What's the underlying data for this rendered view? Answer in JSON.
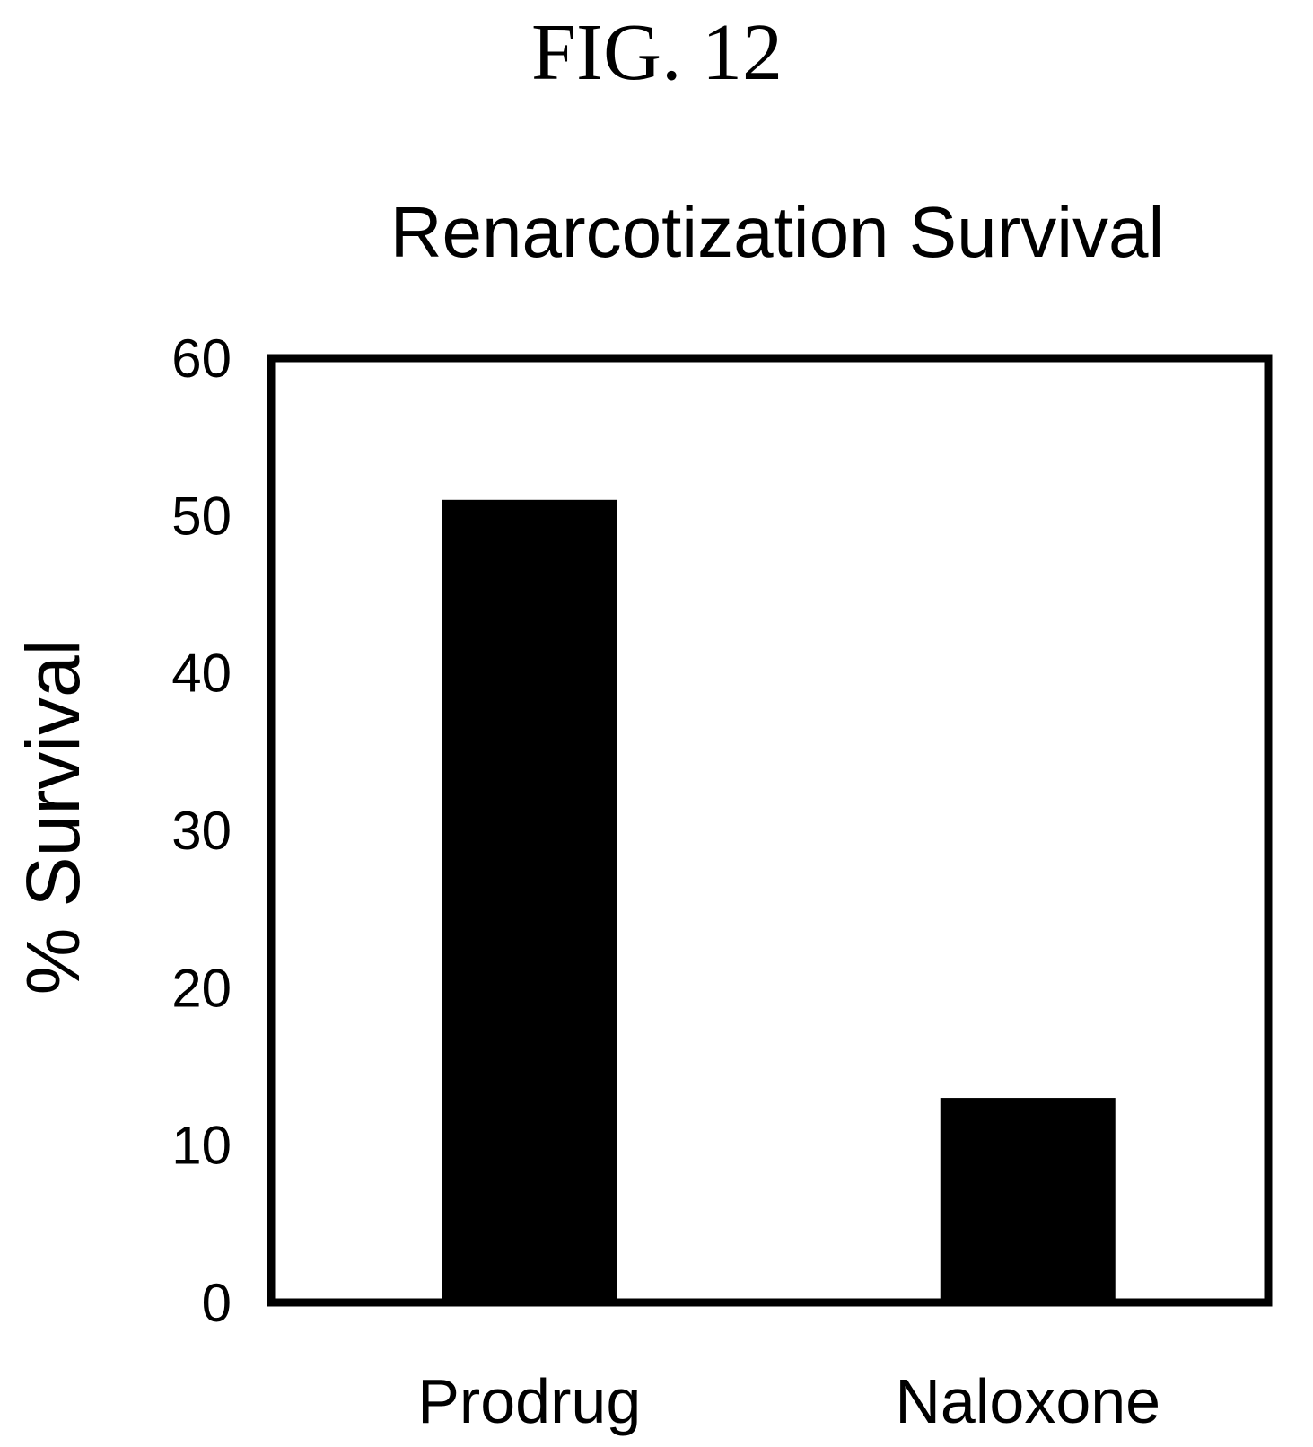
{
  "figure_label": "FIG. 12",
  "chart_data": {
    "type": "bar",
    "title": "Renarcotization Survival",
    "xlabel": "",
    "ylabel": "% Survival",
    "categories": [
      "Prodrug",
      "Naloxone"
    ],
    "values": [
      51,
      13
    ],
    "ylim": [
      0,
      60
    ],
    "yticks": [
      "0",
      "10",
      "20",
      "30",
      "40",
      "50",
      "60"
    ],
    "grid": false,
    "legend": "none",
    "bar_color": "#000000",
    "frame_color": "#000000"
  }
}
